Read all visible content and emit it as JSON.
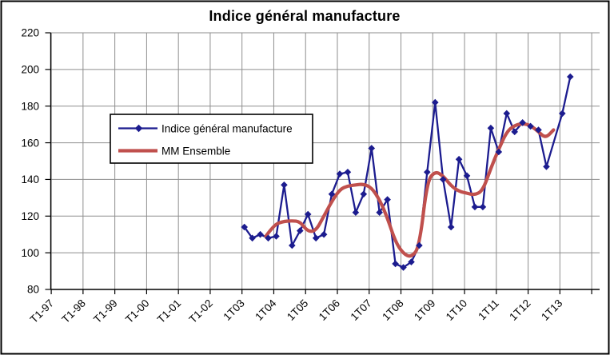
{
  "chart_data": {
    "type": "line",
    "title": "Indice général manufacture",
    "xlabel": "",
    "ylabel": "",
    "ylim": [
      80,
      220
    ],
    "y_ticks": [
      80,
      100,
      120,
      140,
      160,
      180,
      200,
      220
    ],
    "x_tick_labels": [
      "T1-97",
      "T1-98",
      "T1-99",
      "T1-00",
      "T1-01",
      "T1-02",
      "1T03",
      "1T04",
      "1T05",
      "1T06",
      "1T07",
      "1T08",
      "1T09",
      "1T10",
      "1T11",
      "1T12",
      "1T13"
    ],
    "grid": true,
    "grid_color": "#8e8e8e",
    "legend_position": "inside-upper-left",
    "series": [
      {
        "name": "Indice général manufacture",
        "color": "#1c1c8f",
        "marker": "diamond",
        "frequency": "quarterly",
        "start_category": "1T03",
        "values": [
          114,
          108,
          110,
          108,
          109,
          137,
          104,
          112,
          121,
          108,
          110,
          132,
          143,
          144,
          122,
          132,
          157,
          122,
          129,
          94,
          92,
          95,
          104,
          144,
          182,
          140,
          114,
          151,
          142,
          125,
          125,
          168,
          155,
          176,
          166,
          171,
          169,
          167,
          147,
          null,
          176,
          196
        ]
      },
      {
        "name": "MM Ensemble",
        "color": "#c0504d",
        "marker": "none",
        "smooth": true,
        "quarters_from": "1T03",
        "points": [
          [
            2.7,
            109
          ],
          [
            3.7,
            115
          ],
          [
            4.7,
            117
          ],
          [
            6,
            117.5
          ],
          [
            7,
            117
          ],
          [
            8,
            111.5
          ],
          [
            9,
            112
          ],
          [
            10,
            120
          ],
          [
            11,
            128
          ],
          [
            12,
            134.5
          ],
          [
            13,
            136.5
          ],
          [
            14,
            137
          ],
          [
            15,
            137.5
          ],
          [
            16,
            135.5
          ],
          [
            17,
            129
          ],
          [
            18,
            119
          ],
          [
            19,
            106
          ],
          [
            20,
            99.5
          ],
          [
            21,
            97.5
          ],
          [
            22,
            103
          ],
          [
            23,
            139
          ],
          [
            24,
            144.5
          ],
          [
            25,
            142
          ],
          [
            26,
            136.5
          ],
          [
            27,
            133.5
          ],
          [
            28,
            132.5
          ],
          [
            29,
            131.5
          ],
          [
            30,
            134
          ],
          [
            31,
            146
          ],
          [
            32,
            156.5
          ],
          [
            33,
            166
          ],
          [
            34,
            169.5
          ],
          [
            35,
            170.5
          ],
          [
            36,
            169.5
          ],
          [
            37,
            166
          ],
          [
            37.9,
            162.5
          ],
          [
            38.9,
            167
          ]
        ]
      }
    ]
  }
}
